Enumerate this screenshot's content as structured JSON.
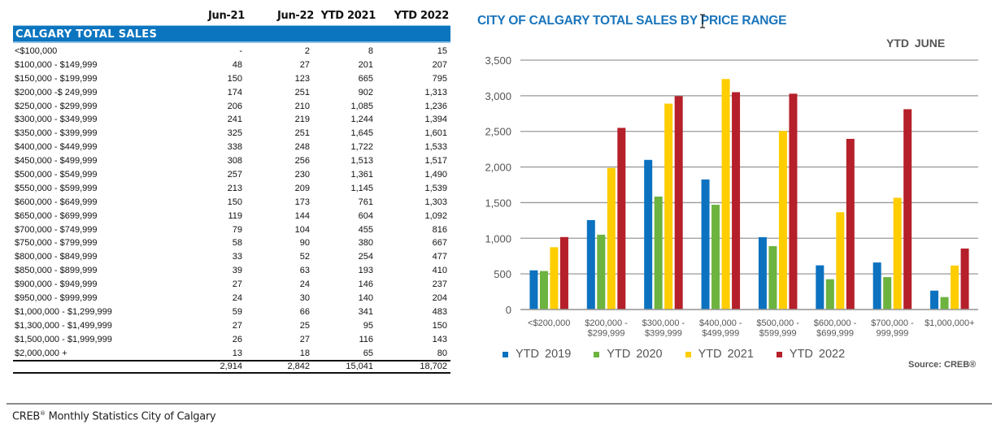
{
  "table": {
    "columns": [
      "Jun-21",
      "Jun-22",
      "YTD 2021",
      "YTD 2022"
    ],
    "section_title": "CALGARY TOTAL SALES",
    "rows": [
      {
        "label": "<$100,000",
        "values": [
          "-",
          "2",
          "8",
          "15"
        ]
      },
      {
        "label": "$100,000 - $149,999",
        "values": [
          "48",
          "27",
          "201",
          "207"
        ]
      },
      {
        "label": "$150,000 - $199,999",
        "values": [
          "150",
          "123",
          "665",
          "795"
        ]
      },
      {
        "label": "$200,000 -$ 249,999",
        "values": [
          "174",
          "251",
          "902",
          "1,313"
        ]
      },
      {
        "label": "$250,000 - $299,999",
        "values": [
          "206",
          "210",
          "1,085",
          "1,236"
        ]
      },
      {
        "label": "$300,000 - $349,999",
        "values": [
          "241",
          "219",
          "1,244",
          "1,394"
        ]
      },
      {
        "label": "$350,000 - $399,999",
        "values": [
          "325",
          "251",
          "1,645",
          "1,601"
        ]
      },
      {
        "label": "$400,000 - $449,999",
        "values": [
          "338",
          "248",
          "1,722",
          "1,533"
        ]
      },
      {
        "label": "$450,000 - $499,999",
        "values": [
          "308",
          "256",
          "1,513",
          "1,517"
        ]
      },
      {
        "label": "$500,000 - $549,999",
        "values": [
          "257",
          "230",
          "1,361",
          "1,490"
        ]
      },
      {
        "label": "$550,000 - $599,999",
        "values": [
          "213",
          "209",
          "1,145",
          "1,539"
        ]
      },
      {
        "label": "$600,000 - $649,999",
        "values": [
          "150",
          "173",
          "761",
          "1,303"
        ]
      },
      {
        "label": "$650,000 - $699,999",
        "values": [
          "119",
          "144",
          "604",
          "1,092"
        ]
      },
      {
        "label": "$700,000 - $749,999",
        "values": [
          "79",
          "104",
          "455",
          "816"
        ]
      },
      {
        "label": "$750,000 - $799,999",
        "values": [
          "58",
          "90",
          "380",
          "667"
        ]
      },
      {
        "label": "$800,000 - $849,999",
        "values": [
          "33",
          "52",
          "254",
          "477"
        ]
      },
      {
        "label": "$850,000 - $899,999",
        "values": [
          "39",
          "63",
          "193",
          "410"
        ]
      },
      {
        "label": "$900,000 - $949,999",
        "values": [
          "27",
          "24",
          "146",
          "237"
        ]
      },
      {
        "label": "$950,000 - $999,999",
        "values": [
          "24",
          "30",
          "140",
          "204"
        ]
      },
      {
        "label": "$1,000,000 - $1,299,999",
        "values": [
          "59",
          "66",
          "341",
          "483"
        ]
      },
      {
        "label": "$1,300,000 - $1,499,999",
        "values": [
          "27",
          "25",
          "95",
          "150"
        ]
      },
      {
        "label": "$1,500,000 - $1,999,999",
        "values": [
          "26",
          "27",
          "116",
          "143"
        ]
      },
      {
        "label": "$2,000,000 +",
        "values": [
          "13",
          "18",
          "65",
          "80"
        ]
      }
    ],
    "totals": [
      "2,914",
      "2,842",
      "15,041",
      "18,702"
    ]
  },
  "chart_data": {
    "type": "bar",
    "title": "CITY OF CALGARY TOTAL SALES BY PRICE RANGE",
    "subtitle": "YTD  JUNE",
    "xlabel": "",
    "ylabel": "",
    "ylim": [
      0,
      3500
    ],
    "yticks": [
      0,
      500,
      1000,
      1500,
      2000,
      2500,
      3000,
      3500
    ],
    "ytick_labels": [
      "0",
      "500",
      "1,000",
      "1,500",
      "2,000",
      "2,500",
      "3,000",
      "3,500"
    ],
    "grid": true,
    "legend_position": "bottom-left",
    "categories": [
      [
        "<$200,000"
      ],
      [
        "$200,000 -",
        "$299,999"
      ],
      [
        "$300,000 -",
        "$399,999"
      ],
      [
        "$400,000 -",
        "$499,999"
      ],
      [
        "$500,000 -",
        "$599,999"
      ],
      [
        "$600,000 -",
        "$699,999"
      ],
      [
        "$700,000 -",
        "999,999"
      ],
      [
        "$1,000,000+"
      ]
    ],
    "series": [
      {
        "name": "YTD  2019",
        "color": "#0c72c0",
        "values": [
          550,
          1255,
          2100,
          1825,
          1015,
          620,
          660,
          265
        ]
      },
      {
        "name": "YTD  2020",
        "color": "#6db33f",
        "values": [
          540,
          1050,
          1585,
          1470,
          890,
          425,
          455,
          175
        ]
      },
      {
        "name": "YTD  2021",
        "color": "#ffcd00",
        "values": [
          874,
          1987,
          2889,
          3235,
          2506,
          1365,
          1568,
          617
        ]
      },
      {
        "name": "YTD  2022",
        "color": "#b5202a",
        "values": [
          1017,
          2549,
          2995,
          3050,
          3029,
          2395,
          2811,
          856
        ]
      }
    ],
    "source": "Source: CREB®"
  },
  "footer": {
    "brand": "CREB",
    "reg": "®",
    "text": " Monthly Statistics City of Calgary"
  }
}
